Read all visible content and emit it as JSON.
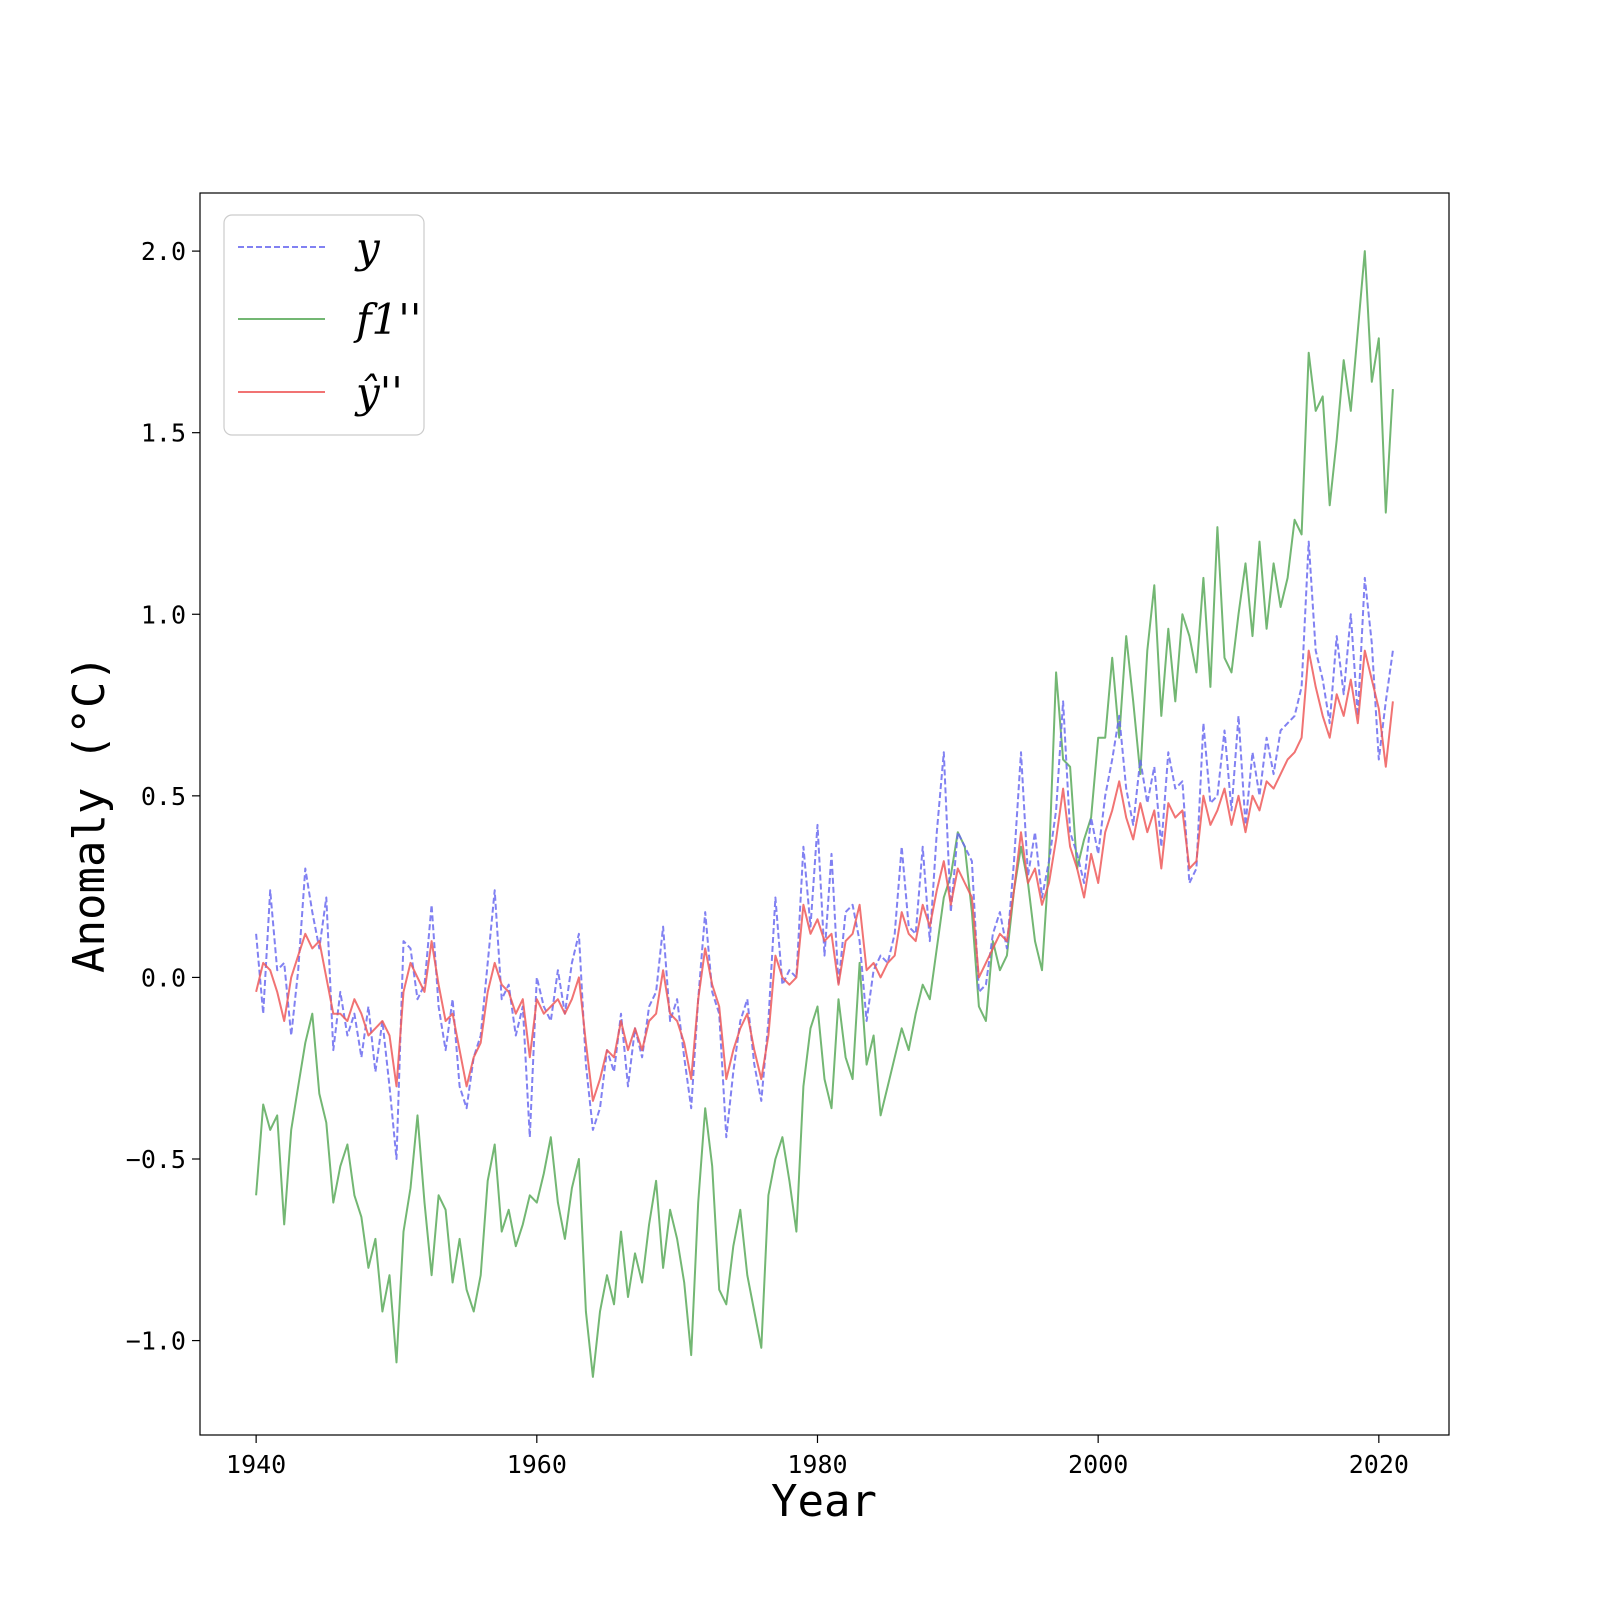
{
  "chart_data": {
    "type": "line",
    "title": "",
    "xlabel": "Year",
    "ylabel": "Anomaly (°C)",
    "xlim": [
      1936,
      2025
    ],
    "ylim": [
      -1.26,
      2.16
    ],
    "x_ticks": [
      1940,
      1960,
      1980,
      2000,
      2020
    ],
    "x_tick_labels": [
      "1940",
      "1960",
      "1980",
      "2000",
      "2020"
    ],
    "y_ticks": [
      -1.0,
      -0.5,
      0.0,
      0.5,
      1.0,
      1.5,
      2.0
    ],
    "y_tick_labels": [
      "−1.0",
      "−0.5",
      "0.0",
      "0.5",
      "1.0",
      "1.5",
      "2.0"
    ],
    "grid": false,
    "legend_position": "top-left",
    "series": [
      {
        "name": "y",
        "color": "#6b6bf0",
        "style": "dashed",
        "x": [
          1940.0,
          1940.5,
          1941.0,
          1941.5,
          1942.0,
          1942.5,
          1943.0,
          1943.5,
          1944.0,
          1944.5,
          1945.0,
          1945.5,
          1946.0,
          1946.5,
          1947.0,
          1947.5,
          1948.0,
          1948.5,
          1949.0,
          1949.5,
          1950.0,
          1950.5,
          1951.0,
          1951.5,
          1952.0,
          1952.5,
          1953.0,
          1953.5,
          1954.0,
          1954.5,
          1955.0,
          1955.5,
          1956.0,
          1956.5,
          1957.0,
          1957.5,
          1958.0,
          1958.5,
          1959.0,
          1959.5,
          1960.0,
          1960.5,
          1961.0,
          1961.5,
          1962.0,
          1962.5,
          1963.0,
          1963.5,
          1964.0,
          1964.5,
          1965.0,
          1965.5,
          1966.0,
          1966.5,
          1967.0,
          1967.5,
          1968.0,
          1968.5,
          1969.0,
          1969.5,
          1970.0,
          1970.5,
          1971.0,
          1971.5,
          1972.0,
          1972.5,
          1973.0,
          1973.5,
          1974.0,
          1974.5,
          1975.0,
          1975.5,
          1976.0,
          1976.5,
          1977.0,
          1977.5,
          1978.0,
          1978.5,
          1979.0,
          1979.5,
          1980.0,
          1980.5,
          1981.0,
          1981.5,
          1982.0,
          1982.5,
          1983.0,
          1983.5,
          1984.0,
          1984.5,
          1985.0,
          1985.5,
          1986.0,
          1986.5,
          1987.0,
          1987.5,
          1988.0,
          1988.5,
          1989.0,
          1989.5,
          1990.0,
          1990.5,
          1991.0,
          1991.5,
          1992.0,
          1992.5,
          1993.0,
          1993.5,
          1994.0,
          1994.5,
          1995.0,
          1995.5,
          1996.0,
          1996.5,
          1997.0,
          1997.5,
          1998.0,
          1998.5,
          1999.0,
          1999.5,
          2000.0,
          2000.5,
          2001.0,
          2001.5,
          2002.0,
          2002.5,
          2003.0,
          2003.5,
          2004.0,
          2004.5,
          2005.0,
          2005.5,
          2006.0,
          2006.5,
          2007.0,
          2007.5,
          2008.0,
          2008.5,
          2009.0,
          2009.5,
          2010.0,
          2010.5,
          2011.0,
          2011.5,
          2012.0,
          2012.5,
          2013.0,
          2013.5,
          2014.0,
          2014.5,
          2015.0,
          2015.5,
          2016.0,
          2016.5,
          2017.0,
          2017.5,
          2018.0,
          2018.5,
          2019.0,
          2019.5,
          2020.0,
          2020.5,
          2021.0
        ],
        "y": [
          0.12,
          -0.1,
          0.24,
          0.02,
          0.04,
          -0.16,
          0.02,
          0.3,
          0.18,
          0.08,
          0.22,
          -0.2,
          -0.04,
          -0.16,
          -0.1,
          -0.22,
          -0.08,
          -0.26,
          -0.12,
          -0.3,
          -0.5,
          0.1,
          0.08,
          -0.06,
          -0.02,
          0.2,
          -0.08,
          -0.2,
          -0.06,
          -0.3,
          -0.36,
          -0.22,
          -0.16,
          0.04,
          0.24,
          -0.06,
          -0.02,
          -0.16,
          -0.08,
          -0.44,
          0.0,
          -0.08,
          -0.12,
          0.02,
          -0.1,
          0.04,
          0.12,
          -0.24,
          -0.42,
          -0.36,
          -0.2,
          -0.26,
          -0.1,
          -0.3,
          -0.14,
          -0.22,
          -0.08,
          -0.04,
          0.14,
          -0.12,
          -0.06,
          -0.22,
          -0.36,
          -0.06,
          0.18,
          -0.04,
          -0.1,
          -0.44,
          -0.26,
          -0.12,
          -0.06,
          -0.24,
          -0.34,
          -0.12,
          0.22,
          -0.02,
          0.02,
          0.0,
          0.36,
          0.14,
          0.42,
          0.06,
          0.34,
          -0.02,
          0.18,
          0.2,
          0.1,
          -0.12,
          0.02,
          0.06,
          0.04,
          0.12,
          0.36,
          0.14,
          0.12,
          0.36,
          0.1,
          0.4,
          0.62,
          0.18,
          0.4,
          0.36,
          0.32,
          -0.04,
          -0.02,
          0.12,
          0.18,
          0.08,
          0.32,
          0.62,
          0.28,
          0.4,
          0.22,
          0.32,
          0.46,
          0.76,
          0.4,
          0.34,
          0.26,
          0.44,
          0.34,
          0.5,
          0.6,
          0.72,
          0.52,
          0.42,
          0.6,
          0.48,
          0.58,
          0.36,
          0.62,
          0.52,
          0.54,
          0.26,
          0.3,
          0.7,
          0.48,
          0.5,
          0.68,
          0.46,
          0.72,
          0.42,
          0.62,
          0.5,
          0.66,
          0.56,
          0.68,
          0.7,
          0.72,
          0.8,
          1.2,
          0.9,
          0.82,
          0.7,
          0.94,
          0.78,
          1.0,
          0.72,
          1.1,
          0.92,
          0.6,
          0.76,
          0.9
        ]
      },
      {
        "name": "f1''",
        "color": "#5aaa5a",
        "style": "solid",
        "x": [
          1940.0,
          1940.5,
          1941.0,
          1941.5,
          1942.0,
          1942.5,
          1943.0,
          1943.5,
          1944.0,
          1944.5,
          1945.0,
          1945.5,
          1946.0,
          1946.5,
          1947.0,
          1947.5,
          1948.0,
          1948.5,
          1949.0,
          1949.5,
          1950.0,
          1950.5,
          1951.0,
          1951.5,
          1952.0,
          1952.5,
          1953.0,
          1953.5,
          1954.0,
          1954.5,
          1955.0,
          1955.5,
          1956.0,
          1956.5,
          1957.0,
          1957.5,
          1958.0,
          1958.5,
          1959.0,
          1959.5,
          1960.0,
          1960.5,
          1961.0,
          1961.5,
          1962.0,
          1962.5,
          1963.0,
          1963.5,
          1964.0,
          1964.5,
          1965.0,
          1965.5,
          1966.0,
          1966.5,
          1967.0,
          1967.5,
          1968.0,
          1968.5,
          1969.0,
          1969.5,
          1970.0,
          1970.5,
          1971.0,
          1971.5,
          1972.0,
          1972.5,
          1973.0,
          1973.5,
          1974.0,
          1974.5,
          1975.0,
          1975.5,
          1976.0,
          1976.5,
          1977.0,
          1977.5,
          1978.0,
          1978.5,
          1979.0,
          1979.5,
          1980.0,
          1980.5,
          1981.0,
          1981.5,
          1982.0,
          1982.5,
          1983.0,
          1983.5,
          1984.0,
          1984.5,
          1985.0,
          1985.5,
          1986.0,
          1986.5,
          1987.0,
          1987.5,
          1988.0,
          1988.5,
          1989.0,
          1989.5,
          1990.0,
          1990.5,
          1991.0,
          1991.5,
          1992.0,
          1992.5,
          1993.0,
          1993.5,
          1994.0,
          1994.5,
          1995.0,
          1995.5,
          1996.0,
          1996.5,
          1997.0,
          1997.5,
          1998.0,
          1998.5,
          1999.0,
          1999.5,
          2000.0,
          2000.5,
          2001.0,
          2001.5,
          2002.0,
          2002.5,
          2003.0,
          2003.5,
          2004.0,
          2004.5,
          2005.0,
          2005.5,
          2006.0,
          2006.5,
          2007.0,
          2007.5,
          2008.0,
          2008.5,
          2009.0,
          2009.5,
          2010.0,
          2010.5,
          2011.0,
          2011.5,
          2012.0,
          2012.5,
          2013.0,
          2013.5,
          2014.0,
          2014.5,
          2015.0,
          2015.5,
          2016.0,
          2016.5,
          2017.0,
          2017.5,
          2018.0,
          2018.5,
          2019.0,
          2019.5,
          2020.0,
          2020.5,
          2021.0
        ],
        "y": [
          -0.6,
          -0.35,
          -0.42,
          -0.38,
          -0.68,
          -0.42,
          -0.3,
          -0.18,
          -0.1,
          -0.32,
          -0.4,
          -0.62,
          -0.52,
          -0.46,
          -0.6,
          -0.66,
          -0.8,
          -0.72,
          -0.92,
          -0.82,
          -1.06,
          -0.7,
          -0.58,
          -0.38,
          -0.62,
          -0.82,
          -0.6,
          -0.64,
          -0.84,
          -0.72,
          -0.86,
          -0.92,
          -0.82,
          -0.56,
          -0.46,
          -0.7,
          -0.64,
          -0.74,
          -0.68,
          -0.6,
          -0.62,
          -0.54,
          -0.44,
          -0.62,
          -0.72,
          -0.58,
          -0.5,
          -0.92,
          -1.1,
          -0.92,
          -0.82,
          -0.9,
          -0.7,
          -0.88,
          -0.76,
          -0.84,
          -0.68,
          -0.56,
          -0.8,
          -0.64,
          -0.72,
          -0.84,
          -1.04,
          -0.62,
          -0.36,
          -0.52,
          -0.86,
          -0.9,
          -0.74,
          -0.64,
          -0.82,
          -0.92,
          -1.02,
          -0.6,
          -0.5,
          -0.44,
          -0.56,
          -0.7,
          -0.3,
          -0.14,
          -0.08,
          -0.28,
          -0.36,
          -0.06,
          -0.22,
          -0.28,
          0.04,
          -0.24,
          -0.16,
          -0.38,
          -0.3,
          -0.22,
          -0.14,
          -0.2,
          -0.1,
          -0.02,
          -0.06,
          0.08,
          0.22,
          0.28,
          0.4,
          0.36,
          0.18,
          -0.08,
          -0.12,
          0.1,
          0.02,
          0.06,
          0.24,
          0.36,
          0.26,
          0.1,
          0.02,
          0.32,
          0.84,
          0.6,
          0.58,
          0.3,
          0.38,
          0.44,
          0.66,
          0.66,
          0.88,
          0.66,
          0.94,
          0.76,
          0.56,
          0.9,
          1.08,
          0.72,
          0.96,
          0.76,
          1.0,
          0.94,
          0.84,
          1.1,
          0.8,
          1.24,
          0.88,
          0.84,
          1.0,
          1.14,
          0.94,
          1.2,
          0.96,
          1.14,
          1.02,
          1.1,
          1.26,
          1.22,
          1.72,
          1.56,
          1.6,
          1.3,
          1.48,
          1.7,
          1.56,
          1.78,
          2.0,
          1.64,
          1.76,
          1.28,
          1.62
        ]
      },
      {
        "name": "ŷ''",
        "color": "#ee5a5a",
        "style": "solid",
        "x": [
          1940.0,
          1940.5,
          1941.0,
          1941.5,
          1942.0,
          1942.5,
          1943.0,
          1943.5,
          1944.0,
          1944.5,
          1945.0,
          1945.5,
          1946.0,
          1946.5,
          1947.0,
          1947.5,
          1948.0,
          1948.5,
          1949.0,
          1949.5,
          1950.0,
          1950.5,
          1951.0,
          1951.5,
          1952.0,
          1952.5,
          1953.0,
          1953.5,
          1954.0,
          1954.5,
          1955.0,
          1955.5,
          1956.0,
          1956.5,
          1957.0,
          1957.5,
          1958.0,
          1958.5,
          1959.0,
          1959.5,
          1960.0,
          1960.5,
          1961.0,
          1961.5,
          1962.0,
          1962.5,
          1963.0,
          1963.5,
          1964.0,
          1964.5,
          1965.0,
          1965.5,
          1966.0,
          1966.5,
          1967.0,
          1967.5,
          1968.0,
          1968.5,
          1969.0,
          1969.5,
          1970.0,
          1970.5,
          1971.0,
          1971.5,
          1972.0,
          1972.5,
          1973.0,
          1973.5,
          1974.0,
          1974.5,
          1975.0,
          1975.5,
          1976.0,
          1976.5,
          1977.0,
          1977.5,
          1978.0,
          1978.5,
          1979.0,
          1979.5,
          1980.0,
          1980.5,
          1981.0,
          1981.5,
          1982.0,
          1982.5,
          1983.0,
          1983.5,
          1984.0,
          1984.5,
          1985.0,
          1985.5,
          1986.0,
          1986.5,
          1987.0,
          1987.5,
          1988.0,
          1988.5,
          1989.0,
          1989.5,
          1990.0,
          1990.5,
          1991.0,
          1991.5,
          1992.0,
          1992.5,
          1993.0,
          1993.5,
          1994.0,
          1994.5,
          1995.0,
          1995.5,
          1996.0,
          1996.5,
          1997.0,
          1997.5,
          1998.0,
          1998.5,
          1999.0,
          1999.5,
          2000.0,
          2000.5,
          2001.0,
          2001.5,
          2002.0,
          2002.5,
          2003.0,
          2003.5,
          2004.0,
          2004.5,
          2005.0,
          2005.5,
          2006.0,
          2006.5,
          2007.0,
          2007.5,
          2008.0,
          2008.5,
          2009.0,
          2009.5,
          2010.0,
          2010.5,
          2011.0,
          2011.5,
          2012.0,
          2012.5,
          2013.0,
          2013.5,
          2014.0,
          2014.5,
          2015.0,
          2015.5,
          2016.0,
          2016.5,
          2017.0,
          2017.5,
          2018.0,
          2018.5,
          2019.0,
          2019.5,
          2020.0,
          2020.5,
          2021.0
        ],
        "y": [
          -0.04,
          0.04,
          0.02,
          -0.04,
          -0.12,
          0.0,
          0.06,
          0.12,
          0.08,
          0.1,
          0.0,
          -0.1,
          -0.1,
          -0.12,
          -0.06,
          -0.1,
          -0.16,
          -0.14,
          -0.12,
          -0.16,
          -0.3,
          -0.04,
          0.04,
          0.0,
          -0.04,
          0.1,
          -0.02,
          -0.12,
          -0.1,
          -0.2,
          -0.3,
          -0.22,
          -0.18,
          -0.04,
          0.04,
          -0.02,
          -0.04,
          -0.1,
          -0.06,
          -0.22,
          -0.06,
          -0.1,
          -0.08,
          -0.06,
          -0.1,
          -0.06,
          0.0,
          -0.18,
          -0.34,
          -0.28,
          -0.2,
          -0.22,
          -0.12,
          -0.2,
          -0.14,
          -0.2,
          -0.12,
          -0.1,
          0.02,
          -0.1,
          -0.12,
          -0.18,
          -0.28,
          -0.06,
          0.08,
          -0.02,
          -0.08,
          -0.28,
          -0.2,
          -0.14,
          -0.1,
          -0.2,
          -0.28,
          -0.16,
          0.06,
          0.0,
          -0.02,
          0.0,
          0.2,
          0.12,
          0.16,
          0.1,
          0.12,
          -0.02,
          0.1,
          0.12,
          0.2,
          0.02,
          0.04,
          0.0,
          0.04,
          0.06,
          0.18,
          0.12,
          0.1,
          0.2,
          0.14,
          0.24,
          0.32,
          0.2,
          0.3,
          0.26,
          0.22,
          0.0,
          0.04,
          0.08,
          0.12,
          0.1,
          0.24,
          0.4,
          0.26,
          0.3,
          0.2,
          0.26,
          0.38,
          0.52,
          0.36,
          0.3,
          0.22,
          0.34,
          0.26,
          0.4,
          0.46,
          0.54,
          0.44,
          0.38,
          0.48,
          0.4,
          0.46,
          0.3,
          0.48,
          0.44,
          0.46,
          0.3,
          0.32,
          0.5,
          0.42,
          0.46,
          0.52,
          0.42,
          0.5,
          0.4,
          0.5,
          0.46,
          0.54,
          0.52,
          0.56,
          0.6,
          0.62,
          0.66,
          0.9,
          0.8,
          0.72,
          0.66,
          0.78,
          0.72,
          0.82,
          0.7,
          0.9,
          0.82,
          0.74,
          0.58,
          0.76
        ]
      }
    ]
  }
}
